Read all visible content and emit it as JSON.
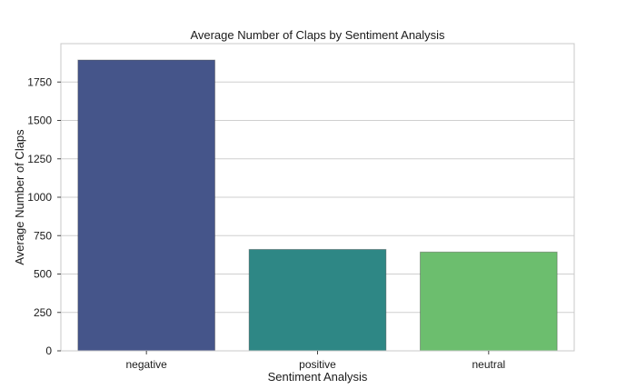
{
  "chart_data": {
    "type": "bar",
    "title": "Average Number of Claps by Sentiment Analysis",
    "xlabel": "Sentiment Analysis",
    "ylabel": "Average Number of Claps",
    "categories": [
      "negative",
      "positive",
      "neutral"
    ],
    "values": [
      1893,
      660,
      643
    ],
    "colors": [
      "#45558a",
      "#2e8785",
      "#6cbe6e"
    ],
    "ylim": [
      0,
      2000
    ],
    "yticks": [
      0,
      250,
      500,
      750,
      1000,
      1250,
      1500,
      1750
    ],
    "grid": "horizontal"
  }
}
